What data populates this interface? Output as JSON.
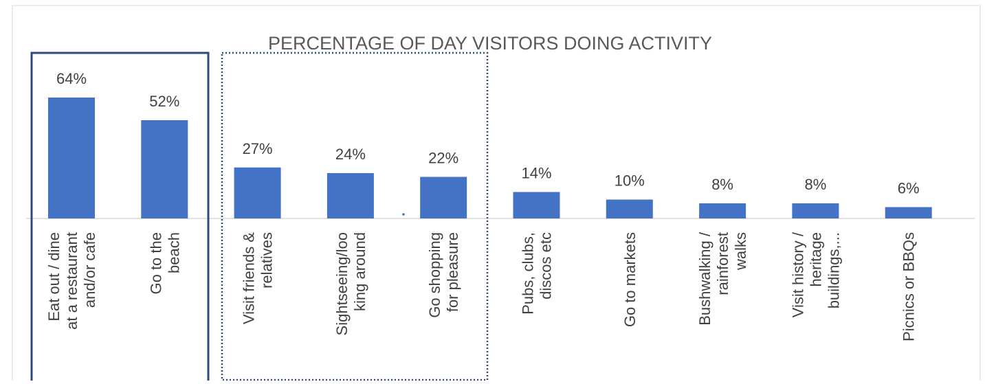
{
  "chart_data": {
    "type": "bar",
    "title": "PERCENTAGE OF DAY VISITORS DOING ACTIVITY",
    "categories": [
      [
        "Eat out / dine",
        "at a restaurant",
        "and/or cafe"
      ],
      [
        "Go to the",
        "beach"
      ],
      [
        "Visit friends &",
        "relatives"
      ],
      [
        "Sightseeing/loo",
        "king around"
      ],
      [
        "Go shopping",
        "for pleasure"
      ],
      [
        "Pubs, clubs,",
        "discos etc"
      ],
      [
        "Go to markets"
      ],
      [
        "Bushwalking /",
        "rainforest",
        "walks"
      ],
      [
        "Visit history /",
        "heritage",
        "buildings,..."
      ],
      [
        "Picnics or BBQs"
      ]
    ],
    "values": [
      64,
      52,
      27,
      24,
      22,
      14,
      10,
      8,
      8,
      6
    ],
    "value_labels": [
      "64%",
      "52%",
      "27%",
      "24%",
      "22%",
      "14%",
      "10%",
      "8%",
      "8%",
      "6%"
    ],
    "color": "#4472c4"
  }
}
